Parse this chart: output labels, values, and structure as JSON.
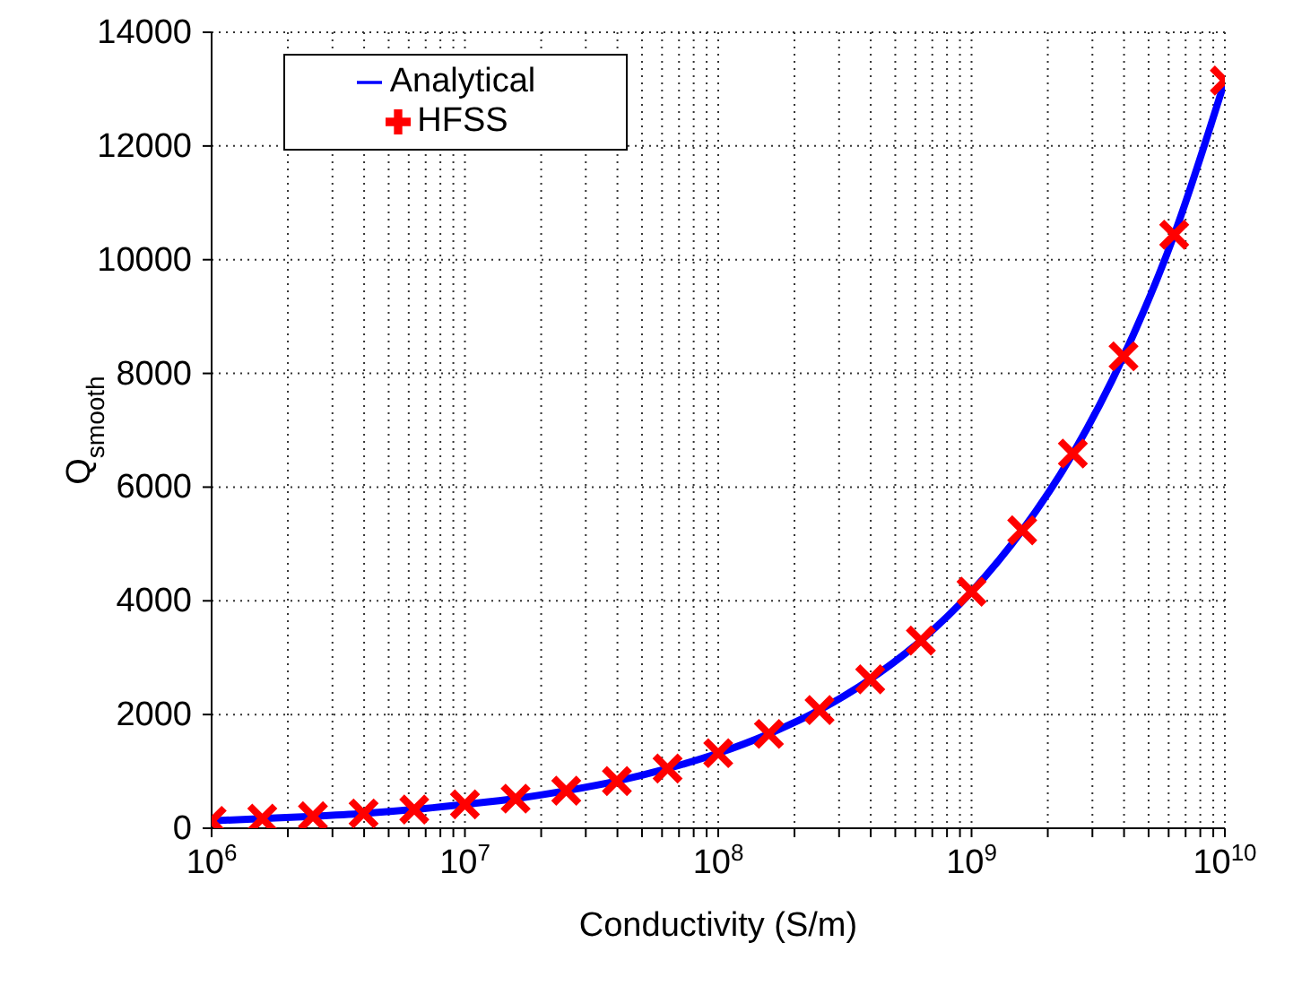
{
  "chart_data": {
    "type": "line",
    "xlabel": "Conductivity (S/m)",
    "ylabel": "Q$_{smooth}$",
    "x": [
      1000000,
      1585000,
      2512000,
      3981000,
      6310000,
      10000000,
      15850000,
      25120000,
      39810000,
      63100000,
      100000000,
      158500000,
      251200000,
      398100000,
      631000000,
      1000000000,
      1585000000,
      2512000000,
      3981000000,
      6310000000,
      10000000000
    ],
    "series": [
      {
        "name": "Analytical",
        "color": "#0000ff",
        "marker": "none",
        "values": [
          130,
          170,
          210,
          260,
          330,
          420,
          520,
          660,
          830,
          1050,
          1320,
          1660,
          2080,
          2620,
          3300,
          4160,
          5240,
          6590,
          8300,
          10440,
          13150
        ]
      },
      {
        "name": "HFSS",
        "type": "scatter",
        "color": "#ff0000",
        "marker": "cross",
        "values": [
          130,
          170,
          210,
          260,
          330,
          420,
          520,
          660,
          830,
          1050,
          1320,
          1660,
          2080,
          2620,
          3300,
          4160,
          5240,
          6590,
          8300,
          10440,
          13150
        ]
      }
    ],
    "log": "x",
    "xlim": [
      1000000,
      10000000000
    ],
    "xticks": [
      {
        "value": 1000000,
        "label": "10$^{6}$"
      },
      {
        "value": 2000000,
        "label": null
      },
      {
        "value": 3000000,
        "label": null
      },
      {
        "value": 4000000,
        "label": null
      },
      {
        "value": 5000000,
        "label": null
      },
      {
        "value": 6000000,
        "label": null
      },
      {
        "value": 7000000,
        "label": null
      },
      {
        "value": 8000000,
        "label": null
      },
      {
        "value": 9000000,
        "label": null
      },
      {
        "value": 10000000,
        "label": "10$^{7}$"
      },
      {
        "value": 20000000,
        "label": null
      },
      {
        "value": 30000000,
        "label": null
      },
      {
        "value": 40000000,
        "label": null
      },
      {
        "value": 50000000,
        "label": null
      },
      {
        "value": 60000000,
        "label": null
      },
      {
        "value": 70000000,
        "label": null
      },
      {
        "value": 80000000,
        "label": null
      },
      {
        "value": 90000000,
        "label": null
      },
      {
        "value": 100000000,
        "label": "10$^{8}$"
      },
      {
        "value": 200000000,
        "label": null
      },
      {
        "value": 300000000,
        "label": null
      },
      {
        "value": 400000000,
        "label": null
      },
      {
        "value": 500000000,
        "label": null
      },
      {
        "value": 600000000,
        "label": null
      },
      {
        "value": 700000000,
        "label": null
      },
      {
        "value": 800000000,
        "label": null
      },
      {
        "value": 900000000,
        "label": null
      },
      {
        "value": 1000000000,
        "label": "10$^{9}$"
      },
      {
        "value": 2000000000,
        "label": null
      },
      {
        "value": 3000000000,
        "label": null
      },
      {
        "value": 4000000000,
        "label": null
      },
      {
        "value": 5000000000,
        "label": null
      },
      {
        "value": 6000000000,
        "label": null
      },
      {
        "value": 7000000000,
        "label": null
      },
      {
        "value": 8000000000,
        "label": null
      },
      {
        "value": 9000000000,
        "label": null
      },
      {
        "value": 10000000000,
        "label": "10$^{10}$"
      }
    ],
    "ylim": [
      0,
      14000
    ],
    "yticks": [
      0,
      2000,
      4000,
      6000,
      8000,
      10000,
      12000,
      14000
    ],
    "grid": true,
    "legend": "top left"
  }
}
